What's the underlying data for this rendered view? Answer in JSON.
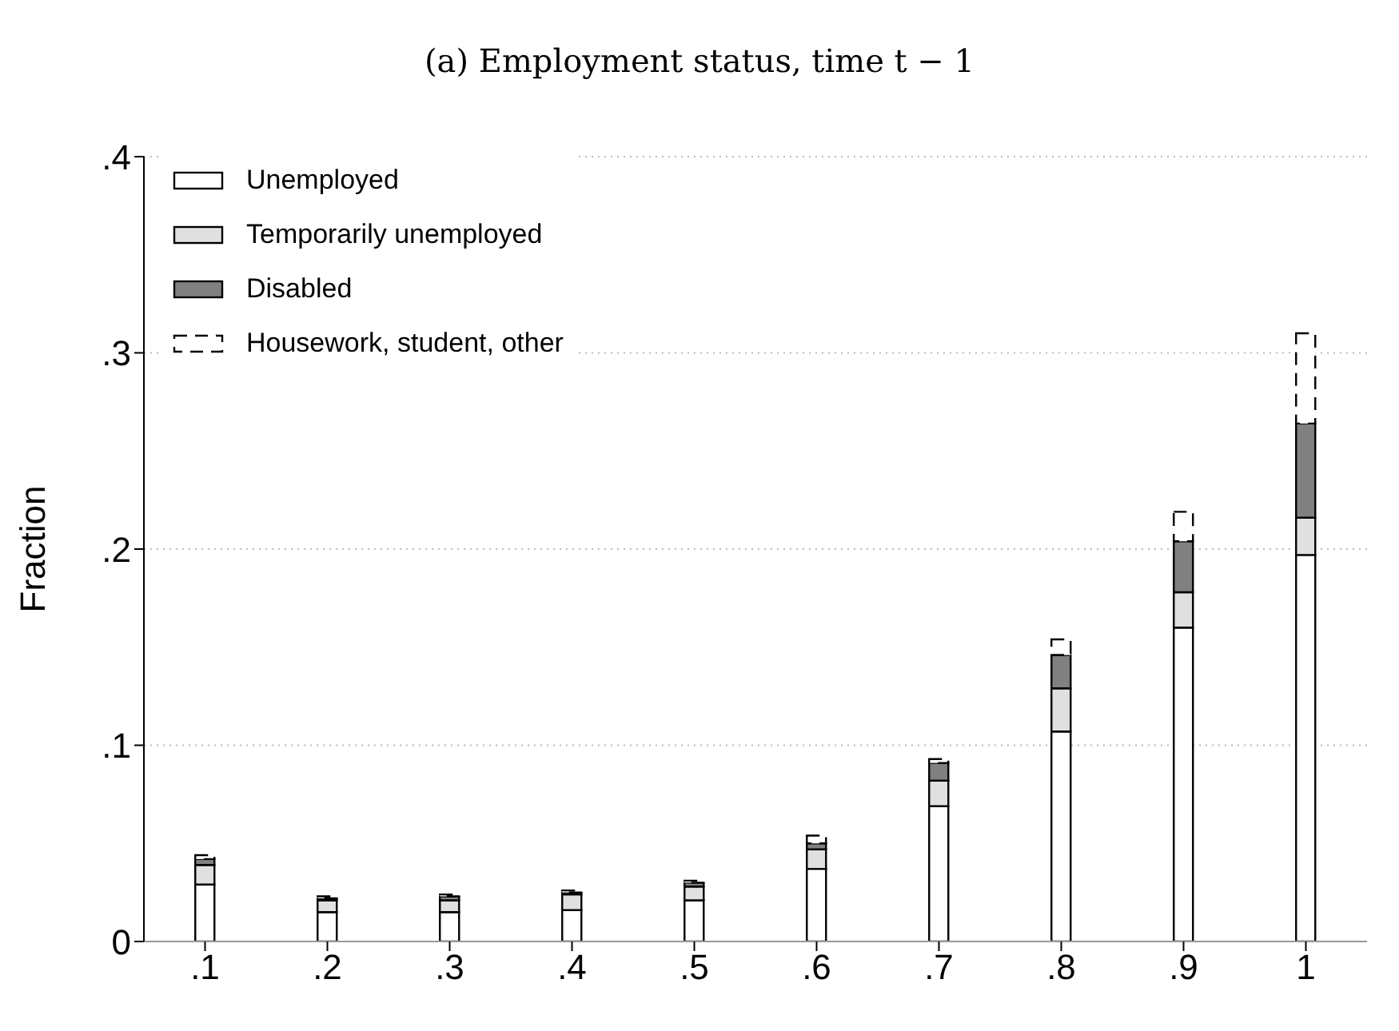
{
  "chart_data": {
    "type": "bar",
    "title": "(a) Employment status, time t − 1",
    "ylabel": "Fraction",
    "stacked": true,
    "grid": "y",
    "legend": "top left",
    "categories": [
      ".1",
      ".2",
      ".3",
      ".4",
      ".5",
      ".6",
      ".7",
      ".8",
      ".9",
      "1"
    ],
    "ylim": [
      0,
      0.4
    ],
    "yticks": [
      {
        "value": 0,
        "label": "0"
      },
      {
        "value": 0.1,
        "label": ".1"
      },
      {
        "value": 0.2,
        "label": ".2"
      },
      {
        "value": 0.3,
        "label": ".3"
      },
      {
        "value": 0.4,
        "label": ".4"
      }
    ],
    "series": [
      {
        "name": "Unemployed",
        "color": "#ffffff",
        "values": [
          0.029,
          0.015,
          0.015,
          0.016,
          0.021,
          0.037,
          0.069,
          0.107,
          0.16,
          0.197
        ]
      },
      {
        "name": "Temporarily unemployed",
        "color": "#e0e0e0",
        "values": [
          0.01,
          0.006,
          0.006,
          0.008,
          0.007,
          0.01,
          0.013,
          0.022,
          0.018,
          0.019
        ]
      },
      {
        "name": "Disabled",
        "color": "#808080",
        "values": [
          0.003,
          0.001,
          0.002,
          0.001,
          0.002,
          0.003,
          0.009,
          0.017,
          0.026,
          0.048
        ]
      },
      {
        "name": "Housework, student, other",
        "color": "#ffffff",
        "line_style": "dashed",
        "values": [
          0.002,
          0.001,
          0.001,
          0.001,
          0.001,
          0.004,
          0.002,
          0.008,
          0.015,
          0.046
        ]
      }
    ]
  }
}
